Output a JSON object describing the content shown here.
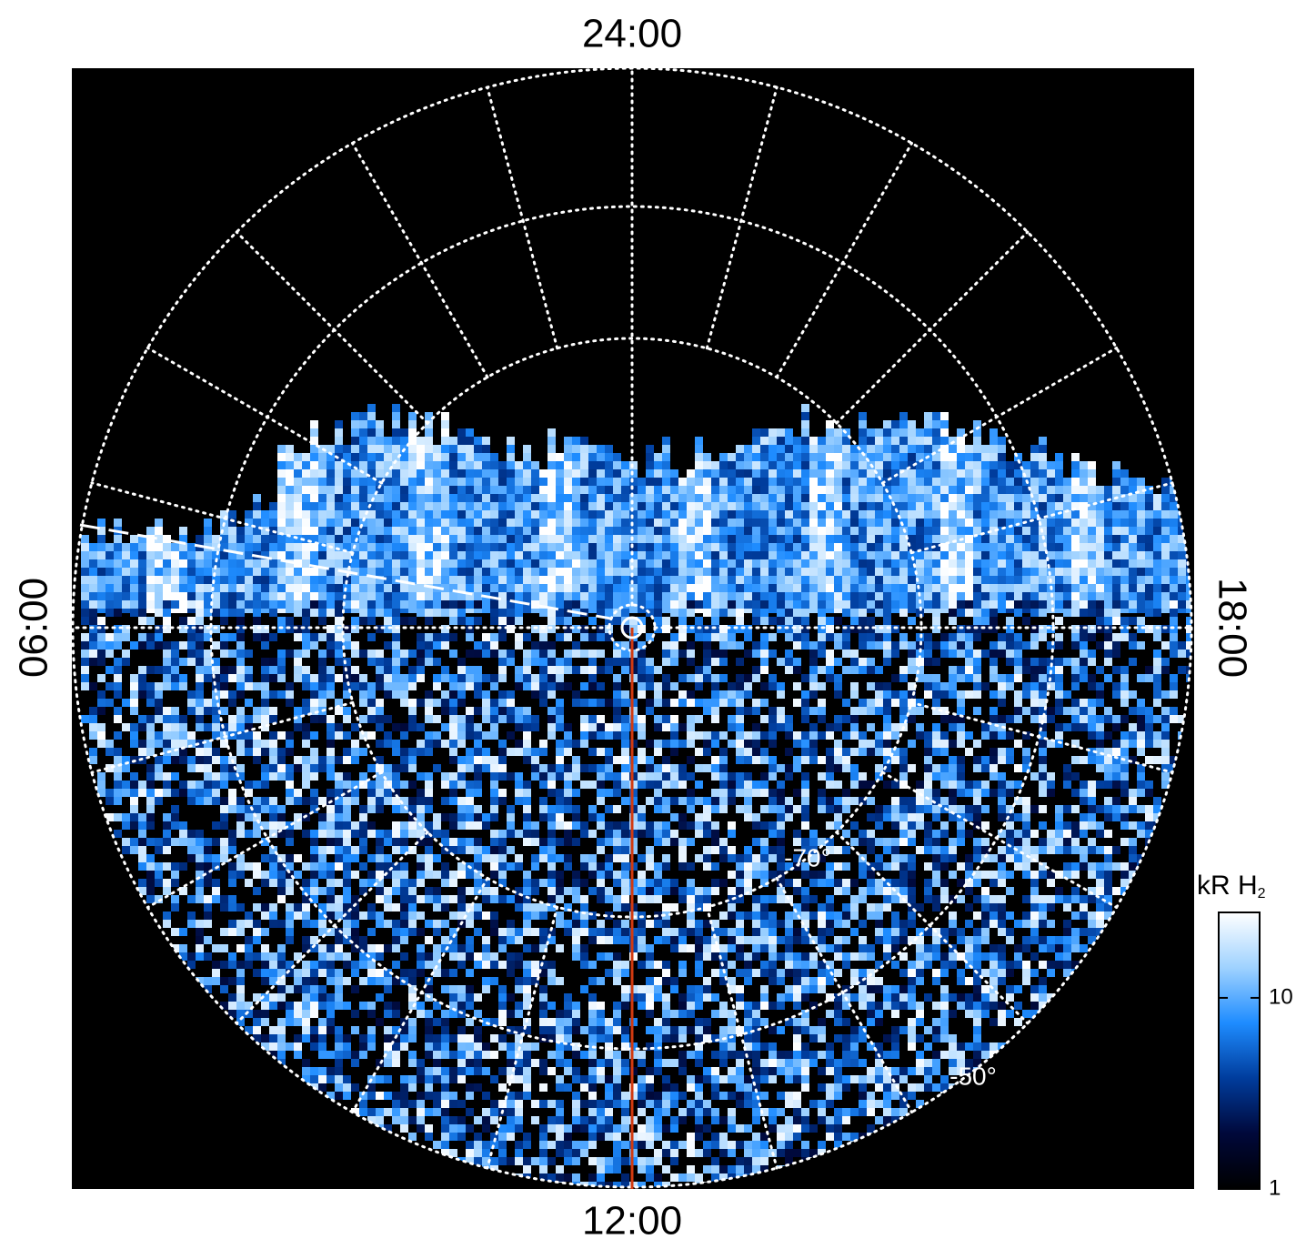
{
  "chart_data": {
    "type": "polar_image",
    "local_time_labels": {
      "top": "24:00",
      "left": "06:00",
      "bottom": "12:00",
      "right": "18:00"
    },
    "latitude_labels": [
      "-70°",
      "-50°"
    ],
    "colorbar": {
      "label": "kR H",
      "label_subscript": "2",
      "log_scale": true,
      "ylim": [
        1,
        28
      ],
      "yticks": [
        1,
        10
      ],
      "colormap": [
        "#000000",
        "#00083a",
        "#003c9c",
        "#1e8cff",
        "#9fd2ff",
        "#ffffff"
      ]
    },
    "reference_line_color": "#d23a10"
  }
}
